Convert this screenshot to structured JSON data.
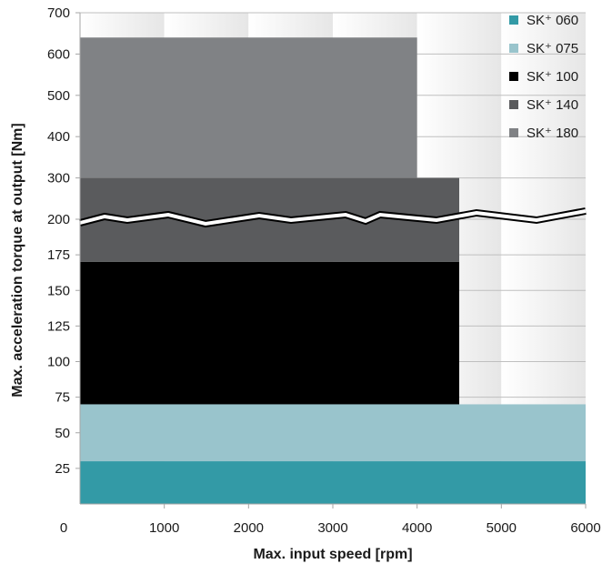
{
  "chart_data": {
    "type": "area",
    "xlabel": "Max. input speed [rpm]",
    "ylabel": "Max. acceleration torque at output [Nm]",
    "x_ticks": [
      "0",
      "1000",
      "2000",
      "3000",
      "4000",
      "5000",
      "6000"
    ],
    "y_ticks": [
      "25",
      "50",
      "75",
      "100",
      "125",
      "150",
      "175",
      "200",
      "300",
      "400",
      "500",
      "600",
      "700"
    ],
    "xlim": [
      0,
      6000
    ],
    "y_axis_break": {
      "lower_segment_max": 200,
      "upper_segment_min": 200,
      "upper_segment_max": 700,
      "break_at": 200
    },
    "legend_position": "top-right",
    "series": [
      {
        "name": "SK⁺ 060",
        "color": "#339aa6",
        "torque_range": [
          0,
          30
        ],
        "max_speed": 6000
      },
      {
        "name": "SK⁺ 075",
        "color": "#99c4cc",
        "torque_range": [
          30,
          70
        ],
        "max_speed": 6000
      },
      {
        "name": "SK⁺ 100",
        "color": "#000000",
        "torque_range": [
          70,
          170
        ],
        "max_speed": 4500
      },
      {
        "name": "SK⁺ 140",
        "color": "#5a5b5d",
        "torque_range": [
          170,
          300
        ],
        "max_speed": 4500
      },
      {
        "name": "SK⁺ 180",
        "color": "#808285",
        "torque_range": [
          300,
          640
        ],
        "max_speed": 4000
      }
    ]
  }
}
